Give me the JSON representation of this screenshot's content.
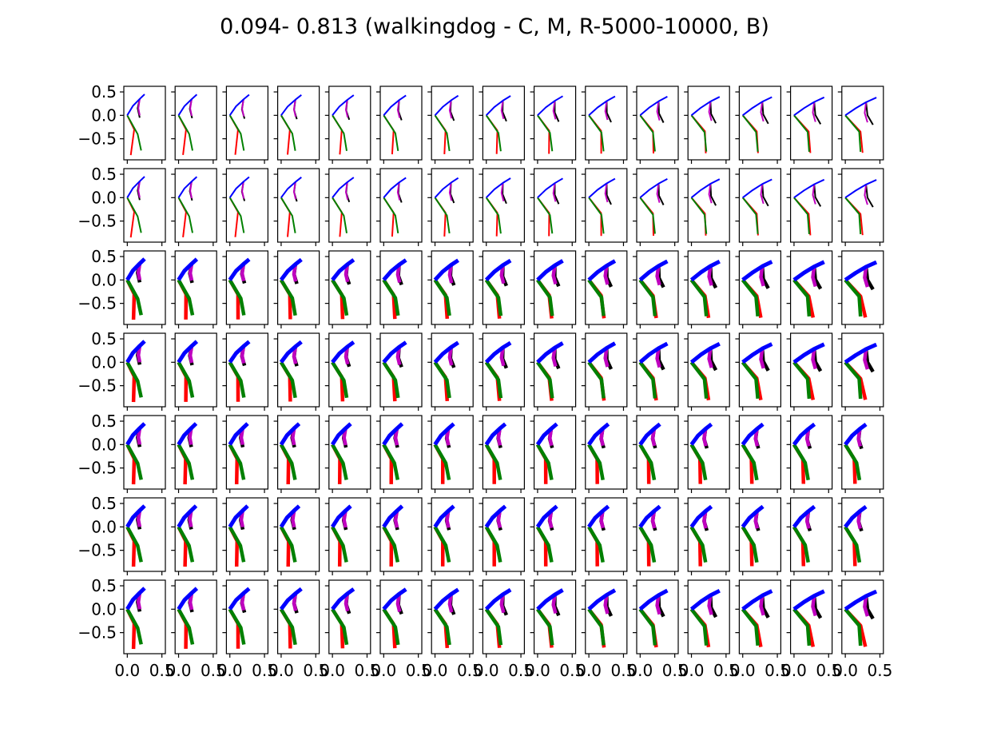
{
  "chart_data": {
    "type": "line",
    "title": "0.094- 0.813 (walkingdog - C, M, R-5000-10000, B)",
    "rows": 7,
    "cols": 15,
    "xlim": [
      -0.05,
      0.55
    ],
    "ylim": [
      -0.95,
      0.62
    ],
    "x_ticks": [
      0.0,
      0.5
    ],
    "x_tick_labels": [
      "0.0",
      "0.5"
    ],
    "y_ticks": [
      0.5,
      0.0,
      -0.5
    ],
    "y_tick_labels": [
      "0.5",
      "0.0",
      "−0.5"
    ],
    "series_colors": {
      "spine": "#0000ff",
      "front_far": "#bf00bf",
      "front_near": "#000000",
      "hind_far": "#ff0000",
      "hind_near": "#008000"
    },
    "row_line_weight": [
      "thin",
      "thin",
      "thick",
      "thick",
      "thick",
      "thick",
      "thick"
    ],
    "skeleton_pose_per_column": [
      {
        "col": 1,
        "spine": [
          [
            0.0,
            0.0
          ],
          [
            0.08,
            0.2
          ],
          [
            0.18,
            0.35
          ],
          [
            0.25,
            0.45
          ]
        ],
        "front_far": [
          [
            0.18,
            0.35
          ],
          [
            0.16,
            0.15
          ],
          [
            0.18,
            0.0
          ]
        ],
        "front_near": [
          [
            0.18,
            0.35
          ],
          [
            0.15,
            0.15
          ],
          [
            0.18,
            -0.05
          ]
        ],
        "hind_far": [
          [
            0.0,
            0.0
          ],
          [
            0.1,
            -0.3
          ],
          [
            0.05,
            -0.85
          ]
        ],
        "hind_near": [
          [
            0.0,
            0.0
          ],
          [
            0.15,
            -0.4
          ],
          [
            0.2,
            -0.75
          ]
        ]
      },
      {
        "col": 15,
        "spine": [
          [
            0.0,
            0.0
          ],
          [
            0.15,
            0.15
          ],
          [
            0.3,
            0.28
          ],
          [
            0.45,
            0.38
          ]
        ],
        "front_far": [
          [
            0.3,
            0.28
          ],
          [
            0.28,
            0.05
          ],
          [
            0.32,
            -0.15
          ]
        ],
        "front_near": [
          [
            0.3,
            0.28
          ],
          [
            0.32,
            0.0
          ],
          [
            0.4,
            -0.2
          ]
        ],
        "hind_far": [
          [
            0.0,
            0.0
          ],
          [
            0.22,
            -0.35
          ],
          [
            0.25,
            -0.8
          ]
        ],
        "hind_near": [
          [
            0.0,
            0.0
          ],
          [
            0.2,
            -0.35
          ],
          [
            0.22,
            -0.78
          ]
        ]
      }
    ]
  }
}
